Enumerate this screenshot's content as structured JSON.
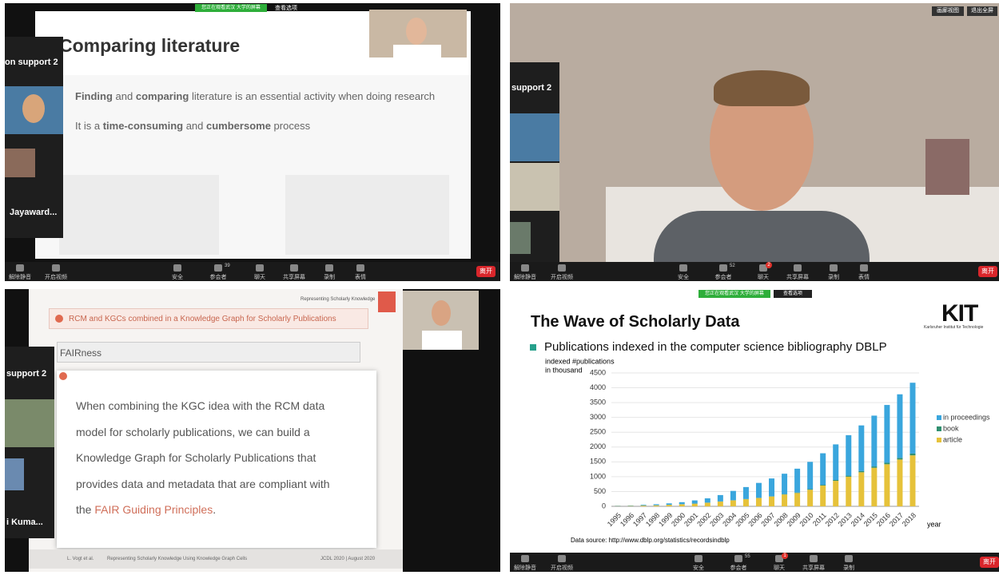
{
  "sharing_banner": "您正在观看武汉 大学的屏幕",
  "view_options": "查看选项",
  "toolbar_labels": [
    "解除静音",
    "开启视频",
    "安全",
    "参会者",
    "聊天",
    "共享屏幕",
    "录制",
    "表情",
    "离开"
  ],
  "panels": [
    {
      "participants": 39,
      "side_names": [
        "on support 2",
        "Jayaward..."
      ],
      "slide": {
        "title": "Comparing literature",
        "line1": [
          "Finding",
          " and ",
          "comparing",
          " literature is an essential activity when doing research"
        ],
        "line2": [
          "It is a ",
          "time-consuming",
          " and ",
          "cumbersome",
          " process"
        ]
      }
    },
    {
      "participants": 52,
      "chat_badge": 2,
      "side_names": [
        "support 2"
      ],
      "view_buttons": [
        "画廊视图",
        "退出全屏"
      ]
    },
    {
      "side_names": [
        "support 2",
        "i Kuma..."
      ],
      "slide": {
        "header": "Representing Scholarly Knowledge",
        "heading": "RCM and KGCs combined in a Knowledge Graph for Scholarly Publications",
        "subheading": "FAIRness",
        "lines": [
          "When combining the KGC idea with the RCM data",
          "model for scholarly publications, we can build a",
          "Knowledge Graph for Scholarly Publications that",
          "provides data and metadata that are compliant with"
        ],
        "last_line": [
          "the ",
          "FAIR Guiding Principles",
          "."
        ],
        "footer": [
          "L. Vogt et al.",
          "Representing Scholarly Knowledge Using Knowledge Graph Cells",
          "JCDL 2020 | August 2020"
        ]
      }
    },
    {
      "participants": 55,
      "chat_badge": 1,
      "slide": {
        "title": "The Wave of Scholarly Data",
        "logo": "KIT",
        "logo_sub": "Karlsruher Institut für Technologie",
        "bullet": "Publications indexed in the computer science bibliography DBLP",
        "source": "Data source: http://www.dblp.org/statistics/recordsindblp"
      }
    }
  ],
  "chart_data": {
    "type": "bar",
    "stacked": true,
    "y_label": [
      "indexed #publications",
      "in thousand"
    ],
    "x_label": "year",
    "categories": [
      "1995",
      "1996",
      "1997",
      "1998",
      "1999",
      "2000",
      "2001",
      "2002",
      "2003",
      "2004",
      "2005",
      "2006",
      "2007",
      "2008",
      "2009",
      "2010",
      "2011",
      "2012",
      "2013",
      "2014",
      "2015",
      "2016",
      "2017",
      "2018"
    ],
    "series": [
      {
        "name": "in proceedings",
        "color": "#3aa6dd",
        "values": [
          9,
          14,
          23,
          33,
          47,
          67,
          106,
          145,
          214,
          313,
          402,
          500,
          598,
          686,
          804,
          920,
          1065,
          1200,
          1365,
          1540,
          1715,
          1950,
          2145,
          2390
        ]
      },
      {
        "name": "book",
        "color": "#2f8f6f",
        "values": [
          1,
          1,
          2,
          2,
          3,
          3,
          4,
          5,
          6,
          7,
          8,
          10,
          12,
          14,
          16,
          20,
          25,
          30,
          35,
          40,
          45,
          50,
          55,
          60
        ]
      },
      {
        "name": "article",
        "color": "#e6c23a",
        "values": [
          10,
          15,
          25,
          35,
          50,
          70,
          90,
          120,
          160,
          200,
          240,
          280,
          330,
          400,
          450,
          560,
          700,
          860,
          1000,
          1150,
          1300,
          1420,
          1580,
          1720
        ]
      }
    ],
    "ylim": [
      0,
      4500
    ],
    "yticks": [
      0,
      500,
      1000,
      1500,
      2000,
      2500,
      3000,
      3500,
      4000,
      4500
    ],
    "grid": true,
    "legend": "right"
  }
}
